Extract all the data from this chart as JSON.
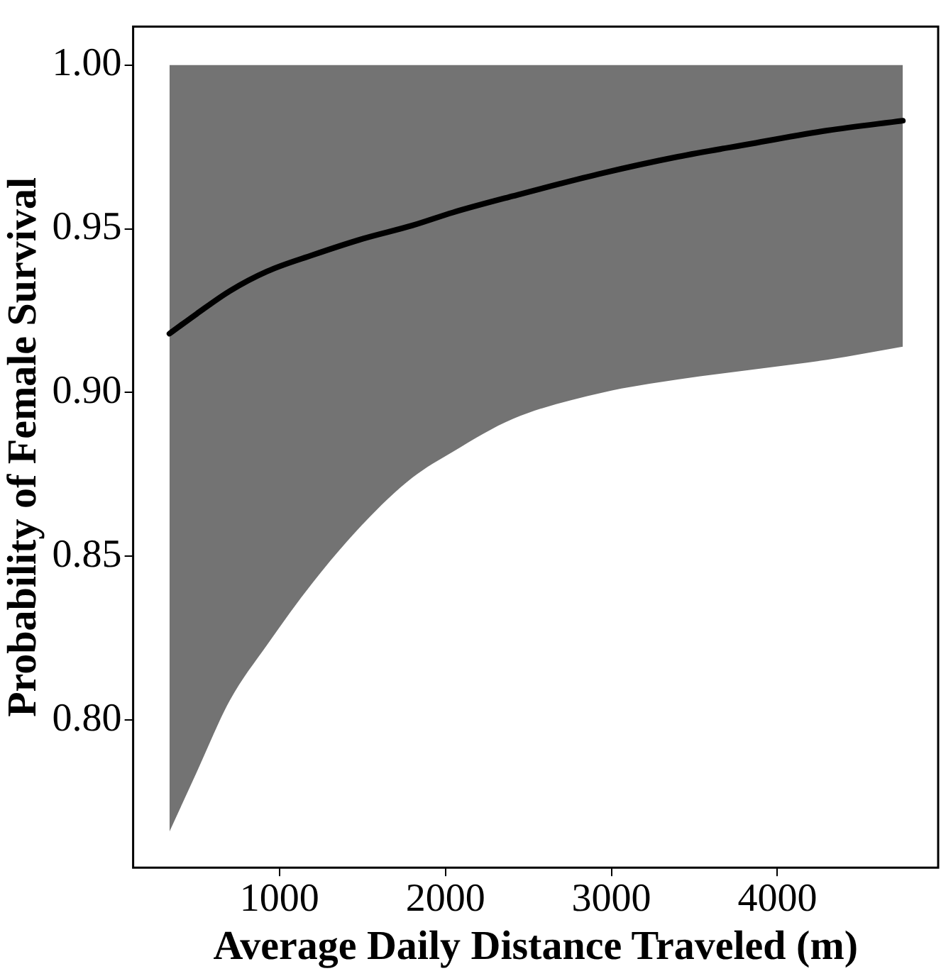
{
  "chart_data": {
    "type": "line",
    "xlabel": "Average Daily Distance Traveled (m)",
    "ylabel": "Probability of Female Survival",
    "x": [
      337,
      500,
      700,
      925,
      1200,
      1505,
      1800,
      2046,
      2407,
      2947,
      3400,
      3845,
      4300,
      4756
    ],
    "series": [
      {
        "color": "#000000",
        "values": [
          0.918,
          0.924,
          0.931,
          0.937,
          0.942,
          0.947,
          0.951,
          0.955,
          0.96,
          0.967,
          0.972,
          0.976,
          0.98,
          0.983
        ],
        "lower": [
          0.766,
          0.784,
          0.806,
          0.823,
          0.842,
          0.86,
          0.874,
          0.882,
          0.892,
          0.9,
          0.904,
          0.907,
          0.91,
          0.914
        ],
        "upper": [
          1.0,
          1.0,
          1.0,
          1.0,
          1.0,
          1.0,
          1.0,
          1.0,
          1.0,
          1.0,
          1.0,
          1.0,
          1.0,
          1.0
        ]
      }
    ],
    "xlim": [
      118,
      4969
    ],
    "xticks": [
      1000,
      2000,
      3000,
      4000
    ],
    "ylim": [
      0.755,
      1.0117
    ],
    "yticks": [
      {
        "value": 0.8,
        "label": "0.80"
      },
      {
        "value": 0.85,
        "label": "0.85"
      },
      {
        "value": 0.9,
        "label": "0.90"
      },
      {
        "value": 0.95,
        "label": "0.95"
      },
      {
        "value": 1.0,
        "label": "1.00"
      }
    ],
    "grid": false,
    "legend": false,
    "marker": "none",
    "line_style": "solid"
  }
}
